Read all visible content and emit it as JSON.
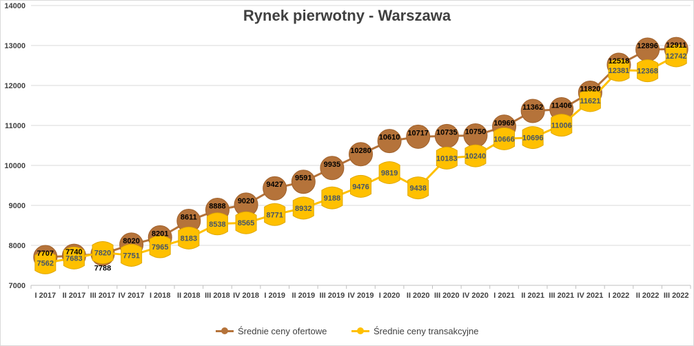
{
  "chart_data": {
    "type": "line",
    "title": "Rynek pierwotny - Warszawa",
    "xlabel": "",
    "ylabel": "",
    "ylim": [
      7000,
      14000
    ],
    "yticks": [
      7000,
      8000,
      9000,
      10000,
      11000,
      12000,
      13000,
      14000
    ],
    "grid": true,
    "legend_position": "bottom",
    "categories": [
      "I 2017",
      "II 2017",
      "III 2017",
      "IV 2017",
      "I 2018",
      "II 2018",
      "III 2018",
      "IV 2018",
      "I 2019",
      "II 2019",
      "III 2019",
      "IV 2019",
      "I 2020",
      "II 2020",
      "III 2020",
      "IV 2020",
      "I 2021",
      "II 2021",
      "III 2021",
      "IV 2021",
      "I 2022",
      "II 2022",
      "III 2022"
    ],
    "series": [
      {
        "name": "Średnie ceny ofertowe",
        "color": "#b5733a",
        "marker": "circle",
        "values": [
          7707,
          7740,
          7788,
          8020,
          8201,
          8611,
          8888,
          9020,
          9427,
          9591,
          9935,
          10280,
          10610,
          10717,
          10735,
          10750,
          10969,
          11362,
          11406,
          11820,
          12518,
          12896,
          12911
        ]
      },
      {
        "name": "Średnie ceny transakcyjne",
        "color": "#ffc000",
        "marker": "square",
        "values": [
          7562,
          7683,
          7820,
          7751,
          7965,
          8183,
          8538,
          8565,
          8771,
          8932,
          9188,
          9476,
          9819,
          9438,
          10183,
          10240,
          10666,
          10696,
          11006,
          11621,
          12381,
          12368,
          12742
        ]
      }
    ]
  }
}
